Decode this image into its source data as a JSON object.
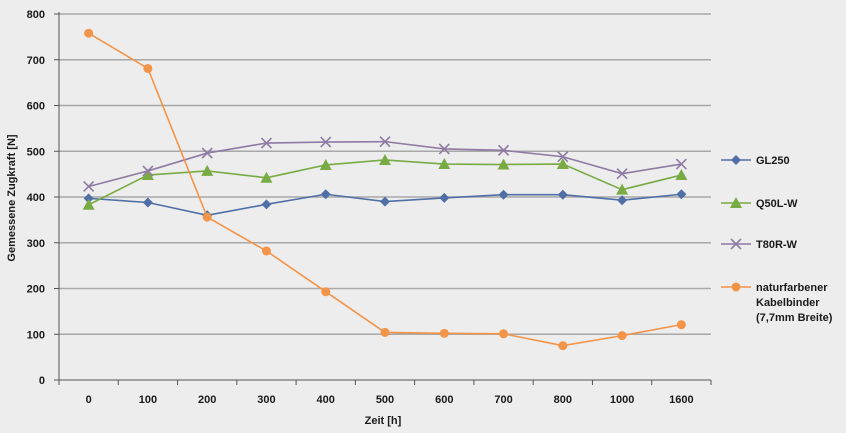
{
  "chart_data": {
    "type": "line",
    "title": "",
    "xlabel": "Zeit [h]",
    "ylabel": "Gemessene Zugkraft [N]",
    "ylim": [
      0,
      800
    ],
    "yticks": [
      "0",
      "100",
      "200",
      "300",
      "400",
      "500",
      "600",
      "700",
      "800"
    ],
    "categories": [
      "0",
      "100",
      "200",
      "300",
      "400",
      "500",
      "600",
      "700",
      "800",
      "1000",
      "1600"
    ],
    "grid": "horizontal",
    "legend_position": "right",
    "series": [
      {
        "name": "GL250",
        "color": "#4f6fa6",
        "marker": "diamond",
        "values": [
          397,
          388,
          360,
          384,
          406,
          390,
          398,
          405,
          405,
          393,
          406
        ]
      },
      {
        "name": "Q50L-W",
        "color": "#78ab44",
        "marker": "triangle",
        "values": [
          383,
          448,
          457,
          442,
          470,
          481,
          472,
          471,
          472,
          416,
          448
        ]
      },
      {
        "name": "T80R-W",
        "color": "#8e7aa3",
        "marker": "cross",
        "values": [
          423,
          457,
          496,
          518,
          520,
          521,
          505,
          502,
          488,
          451,
          472
        ]
      },
      {
        "name": "naturfarbener Kabelbinder (7,7mm Breite)",
        "name_lines": [
          "naturfarbener",
          "Kabelbinder",
          "(7,7mm Breite)"
        ],
        "color": "#f39449",
        "marker": "circle",
        "values": [
          758,
          681,
          356,
          282,
          193,
          104,
          102,
          101,
          75,
          97,
          121
        ]
      }
    ]
  }
}
